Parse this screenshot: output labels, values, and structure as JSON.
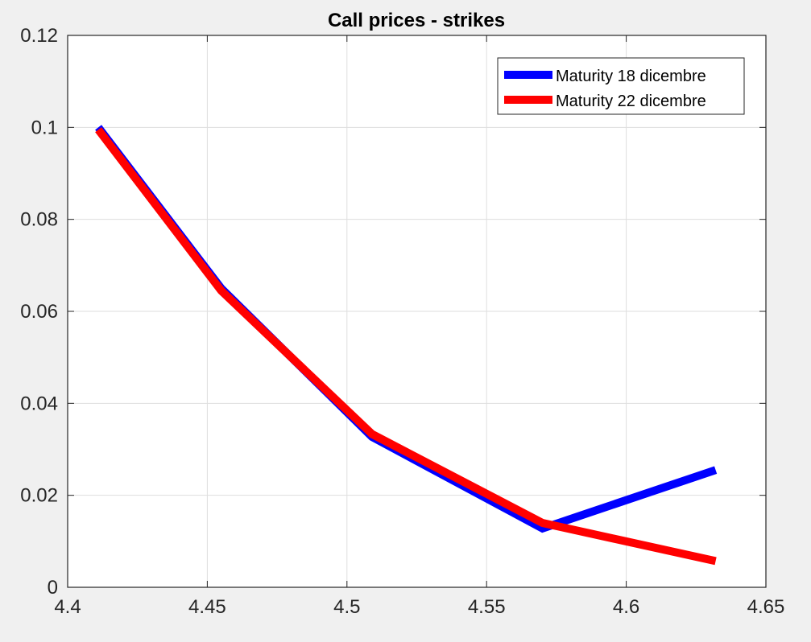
{
  "chart_data": {
    "type": "line",
    "title": "Call prices - strikes",
    "xlabel": "",
    "ylabel": "",
    "xlim": [
      4.4,
      4.65
    ],
    "ylim": [
      0,
      0.12
    ],
    "xticks": [
      4.4,
      4.45,
      4.5,
      4.55,
      4.6,
      4.65
    ],
    "xtick_labels": [
      "4.4",
      "4.45",
      "4.5",
      "4.55",
      "4.6",
      "4.65"
    ],
    "yticks": [
      0,
      0.02,
      0.04,
      0.06,
      0.08,
      0.1,
      0.12
    ],
    "ytick_labels": [
      "0",
      "0.02",
      "0.04",
      "0.06",
      "0.08",
      "0.1",
      "0.12"
    ],
    "grid": true,
    "legend_position": "top-right",
    "series": [
      {
        "name": "Maturity 18 dicembre",
        "color": "#0000ff",
        "x": [
          4.411,
          4.455,
          4.509,
          4.57,
          4.632
        ],
        "y": [
          0.1,
          0.065,
          0.0327,
          0.0128,
          0.0255
        ]
      },
      {
        "name": "Maturity 22 dicembre",
        "color": "#ff0000",
        "x": [
          4.411,
          4.455,
          4.509,
          4.57,
          4.632
        ],
        "y": [
          0.0995,
          0.0645,
          0.0333,
          0.014,
          0.0057
        ]
      }
    ]
  }
}
